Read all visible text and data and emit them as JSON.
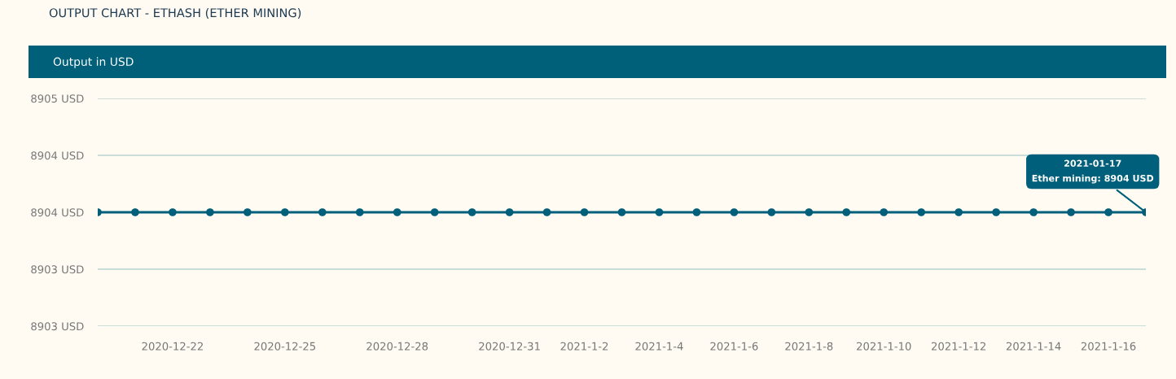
{
  "chart_data": {
    "type": "line",
    "title": "OUTPUT CHART - ETHASH (ETHER MINING)",
    "subtitle": "Output in USD",
    "x": [
      "2020-12-20",
      "2020-12-21",
      "2020-12-22",
      "2020-12-23",
      "2020-12-24",
      "2020-12-25",
      "2020-12-26",
      "2020-12-27",
      "2020-12-28",
      "2020-12-29",
      "2020-12-30",
      "2020-12-31",
      "2021-01-01",
      "2021-01-02",
      "2021-01-03",
      "2021-01-04",
      "2021-01-05",
      "2021-01-06",
      "2021-01-07",
      "2021-01-08",
      "2021-01-09",
      "2021-01-10",
      "2021-01-11",
      "2021-01-12",
      "2021-01-13",
      "2021-01-14",
      "2021-01-15",
      "2021-01-16",
      "2021-01-17"
    ],
    "series": [
      {
        "color": "#005f7a",
        "values": [
          8904,
          8904,
          8904,
          8904,
          8904,
          8904,
          8904,
          8904,
          8904,
          8904,
          8904,
          8904,
          8904,
          8904,
          8904,
          8904,
          8904,
          8904,
          8904,
          8904,
          8904,
          8904,
          8904,
          8904,
          8904,
          8904,
          8904,
          8904,
          8904
        ]
      }
    ],
    "xlim": [
      "2020-12-20",
      "2021-01-17"
    ],
    "xticks": [
      {
        "value": "2020-12-22",
        "label": "2020-12-22"
      },
      {
        "value": "2020-12-25",
        "label": "2020-12-25"
      },
      {
        "value": "2020-12-28",
        "label": "2020-12-28"
      },
      {
        "value": "2020-12-31",
        "label": "2020-12-31"
      },
      {
        "value": "2021-01-02",
        "label": "2021-1-2"
      },
      {
        "value": "2021-01-04",
        "label": "2021-1-4"
      },
      {
        "value": "2021-01-06",
        "label": "2021-1-6"
      },
      {
        "value": "2021-01-08",
        "label": "2021-1-8"
      },
      {
        "value": "2021-01-10",
        "label": "2021-1-10"
      },
      {
        "value": "2021-01-12",
        "label": "2021-1-12"
      },
      {
        "value": "2021-01-14",
        "label": "2021-1-14"
      },
      {
        "value": "2021-01-16",
        "label": "2021-1-16"
      }
    ],
    "ylim": [
      8903,
      8905
    ],
    "yticks": [
      {
        "value": 8903,
        "label": "8903 USD"
      },
      {
        "value": 8903.5,
        "label": "8903 USD"
      },
      {
        "value": 8904,
        "label": "8904 USD"
      },
      {
        "value": 8904.5,
        "label": "8904 USD"
      },
      {
        "value": 8905,
        "label": "8905 USD"
      }
    ],
    "annotations": [
      {
        "text": "2021-01-17\nEther mining: 8904 USD",
        "x": "2021-01-17",
        "y": 8904
      }
    ],
    "grid": "y",
    "marker": "circle",
    "line_style": "solid"
  }
}
